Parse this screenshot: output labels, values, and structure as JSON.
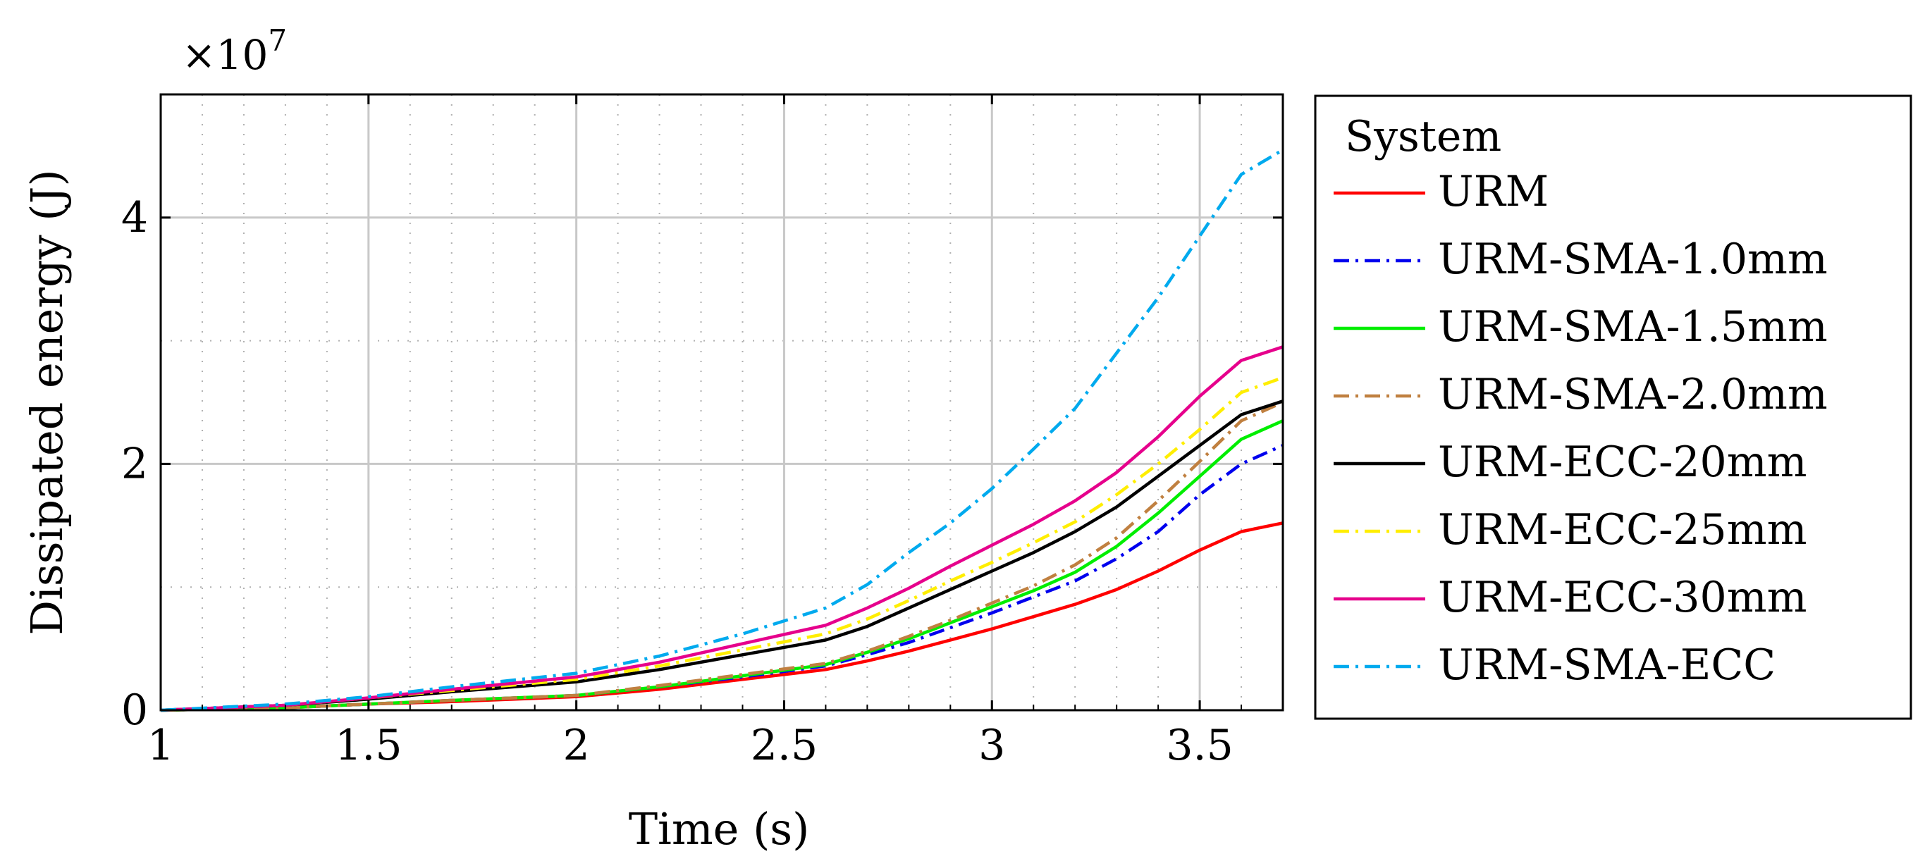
{
  "chart_data": {
    "type": "line",
    "title": "",
    "xlabel": "Time (s)",
    "ylabel": "Dissipated energy (J)",
    "y_multiplier": "×10",
    "y_exponent": "7",
    "xlim": [
      1,
      3.7
    ],
    "ylim": [
      0,
      5
    ],
    "x_ticks": [
      1,
      1.5,
      2,
      2.5,
      3,
      3.5
    ],
    "x_tick_labels": [
      "1",
      "1.5",
      "2",
      "2.5",
      "3",
      "3.5"
    ],
    "y_ticks": [
      0,
      2,
      4
    ],
    "y_tick_labels": [
      "0",
      "2",
      "4"
    ],
    "grid": "major solid, minor dotted",
    "legend": {
      "title": "System",
      "placement": "outside-right"
    },
    "x": [
      1.0,
      1.3,
      1.5,
      1.7,
      2.0,
      2.2,
      2.4,
      2.6,
      2.7,
      2.8,
      2.9,
      3.0,
      3.1,
      3.2,
      3.3,
      3.4,
      3.5,
      3.6,
      3.7
    ],
    "series": [
      {
        "name": "URM",
        "color": "#ff0000",
        "dash": "solid",
        "values": [
          0,
          0.02,
          0.05,
          0.07,
          0.11,
          0.17,
          0.25,
          0.33,
          0.4,
          0.48,
          0.57,
          0.66,
          0.76,
          0.86,
          0.98,
          1.13,
          1.3,
          1.45,
          1.52
        ]
      },
      {
        "name": "URM-SMA-1.0mm",
        "color": "#0000ee",
        "dash": "dashdot",
        "values": [
          0,
          0.02,
          0.05,
          0.08,
          0.12,
          0.19,
          0.27,
          0.36,
          0.45,
          0.55,
          0.67,
          0.79,
          0.92,
          1.05,
          1.23,
          1.45,
          1.75,
          2.0,
          2.15
        ]
      },
      {
        "name": "URM-SMA-1.5mm",
        "color": "#00ee00",
        "dash": "solid",
        "values": [
          0,
          0.02,
          0.05,
          0.08,
          0.12,
          0.19,
          0.28,
          0.37,
          0.47,
          0.58,
          0.71,
          0.84,
          0.97,
          1.12,
          1.33,
          1.6,
          1.9,
          2.2,
          2.35
        ]
      },
      {
        "name": "URM-SMA-2.0mm",
        "color": "#c08040",
        "dash": "dashdot",
        "values": [
          0,
          0.02,
          0.05,
          0.08,
          0.12,
          0.2,
          0.29,
          0.38,
          0.48,
          0.6,
          0.73,
          0.87,
          1.01,
          1.18,
          1.4,
          1.7,
          2.02,
          2.35,
          2.5
        ]
      },
      {
        "name": "URM-ECC-20mm",
        "color": "#000000",
        "dash": "solid",
        "values": [
          0,
          0.04,
          0.09,
          0.15,
          0.23,
          0.33,
          0.45,
          0.57,
          0.68,
          0.83,
          0.98,
          1.13,
          1.28,
          1.45,
          1.65,
          1.9,
          2.15,
          2.4,
          2.51
        ]
      },
      {
        "name": "URM-ECC-25mm",
        "color": "#ffee00",
        "dash": "dashdot",
        "values": [
          0,
          0.04,
          0.1,
          0.16,
          0.25,
          0.36,
          0.49,
          0.62,
          0.74,
          0.89,
          1.05,
          1.2,
          1.36,
          1.53,
          1.75,
          2.0,
          2.28,
          2.58,
          2.7
        ]
      },
      {
        "name": "URM-ECC-30mm",
        "color": "#e6008c",
        "dash": "solid",
        "values": [
          0,
          0.04,
          0.1,
          0.17,
          0.27,
          0.39,
          0.54,
          0.69,
          0.83,
          0.99,
          1.17,
          1.34,
          1.51,
          1.7,
          1.93,
          2.22,
          2.55,
          2.84,
          2.95
        ]
      },
      {
        "name": "URM-SMA-ECC",
        "color": "#00aaee",
        "dash": "dashdot",
        "values": [
          0,
          0.05,
          0.11,
          0.19,
          0.3,
          0.44,
          0.62,
          0.83,
          1.02,
          1.28,
          1.52,
          1.8,
          2.12,
          2.45,
          2.9,
          3.35,
          3.85,
          4.35,
          4.55
        ]
      }
    ]
  }
}
